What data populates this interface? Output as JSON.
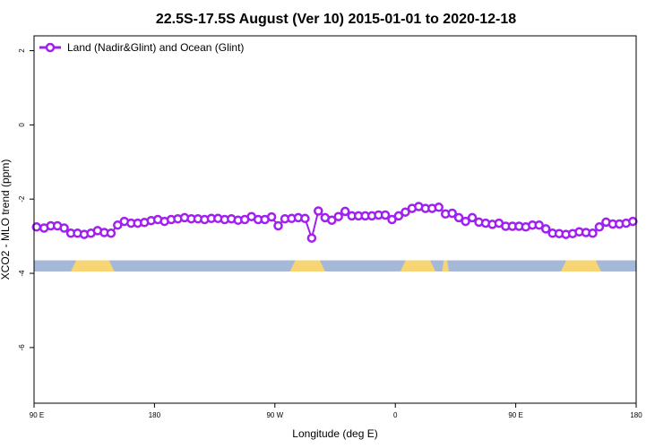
{
  "chart_data": {
    "type": "line",
    "title": "22.5S-17.5S August (Ver 10)   2015-01-01 to 2020-12-18",
    "xlabel": "Longitude (deg E)",
    "ylabel": "XCO2 - MLO trend (ppm)",
    "xlim": [
      90,
      450
    ],
    "ylim": [
      -7.5,
      2.4
    ],
    "x_ticks": [
      {
        "value": 90,
        "label": "90 E"
      },
      {
        "value": 162,
        "label": "180"
      },
      {
        "value": 234,
        "label": "90 W"
      },
      {
        "value": 306,
        "label": "0"
      },
      {
        "value": 378,
        "label": "90 E"
      },
      {
        "value": 450,
        "label": "180"
      }
    ],
    "y_ticks": [
      {
        "value": 2,
        "label": "2"
      },
      {
        "value": 0,
        "label": "0"
      },
      {
        "value": -2,
        "label": "-2"
      },
      {
        "value": -4,
        "label": "-4"
      },
      {
        "value": -6,
        "label": "-6"
      }
    ],
    "legend": {
      "position": "top-left"
    },
    "colors": {
      "series": "#a020f0",
      "ocean": "#a6b8d8",
      "land": "#f7d575"
    },
    "surface_band": {
      "y_range": [
        -3.95,
        -3.65
      ],
      "land_segments": [
        [
          112,
          138
        ],
        [
          243,
          264
        ],
        [
          309,
          330
        ],
        [
          334,
          338
        ],
        [
          405,
          429
        ]
      ]
    },
    "series": [
      {
        "name": "Land (Nadir&Glint) and Ocean (Glint)",
        "x": [
          91.5,
          96,
          100,
          104,
          108,
          112,
          116,
          120,
          124,
          128,
          132,
          136,
          140,
          144,
          148,
          152,
          156,
          160,
          164,
          168,
          172,
          176,
          180,
          184,
          188,
          192,
          196,
          200,
          204,
          208,
          212,
          216,
          220,
          224,
          228,
          232,
          236,
          240,
          244,
          248,
          252,
          256,
          260,
          264,
          268,
          272,
          276,
          280,
          284,
          288,
          292,
          296,
          300,
          304,
          308,
          312,
          316,
          320,
          324,
          328,
          332,
          336,
          340,
          344,
          348,
          352,
          356,
          360,
          364,
          368,
          372,
          376,
          380,
          384,
          388,
          392,
          396,
          400,
          404,
          408,
          412,
          416,
          420,
          424,
          428,
          432,
          436,
          440,
          444,
          448
        ],
        "values": [
          -2.75,
          -2.78,
          -2.72,
          -2.72,
          -2.78,
          -2.92,
          -2.92,
          -2.95,
          -2.92,
          -2.85,
          -2.9,
          -2.92,
          -2.7,
          -2.6,
          -2.65,
          -2.65,
          -2.63,
          -2.58,
          -2.55,
          -2.6,
          -2.55,
          -2.53,
          -2.5,
          -2.53,
          -2.53,
          -2.55,
          -2.52,
          -2.52,
          -2.55,
          -2.53,
          -2.57,
          -2.55,
          -2.47,
          -2.55,
          -2.55,
          -2.48,
          -2.72,
          -2.53,
          -2.52,
          -2.5,
          -2.52,
          -3.05,
          -2.32,
          -2.5,
          -2.57,
          -2.47,
          -2.33,
          -2.45,
          -2.45,
          -2.45,
          -2.45,
          -2.43,
          -2.43,
          -2.55,
          -2.45,
          -2.35,
          -2.25,
          -2.2,
          -2.25,
          -2.25,
          -2.22,
          -2.4,
          -2.38,
          -2.5,
          -2.6,
          -2.5,
          -2.62,
          -2.65,
          -2.68,
          -2.65,
          -2.73,
          -2.73,
          -2.73,
          -2.75,
          -2.7,
          -2.7,
          -2.8,
          -2.92,
          -2.93,
          -2.95,
          -2.93,
          -2.88,
          -2.9,
          -2.92,
          -2.75,
          -2.62,
          -2.67,
          -2.67,
          -2.65,
          -2.6
        ]
      }
    ]
  }
}
